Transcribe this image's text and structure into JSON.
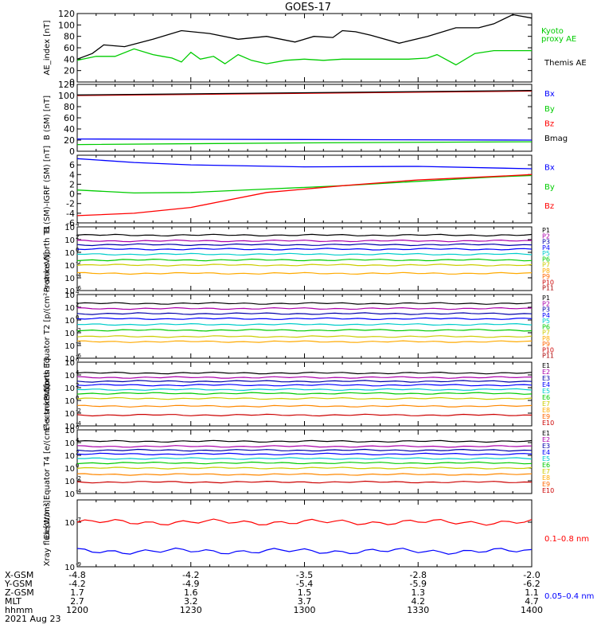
{
  "title": "GOES-17",
  "date_label": "2021 Aug 23",
  "colors": {
    "black": "#000000",
    "blue": "#0000ff",
    "green": "#00cc00",
    "red": "#ff0000",
    "navy": "#0000aa",
    "cyan": "#00cccc"
  },
  "chart_data": [
    {
      "type": "line",
      "ylabel": "AE_index [nT]",
      "ylim": [
        0,
        120
      ],
      "yticks": [
        "0",
        "20",
        "40",
        "60",
        "80",
        "100",
        "120"
      ],
      "legend": [
        "Kyoto proxy AE",
        "Themis AE"
      ],
      "series": [
        {
          "name": "Themis AE",
          "color": "#000000",
          "x": [
            0,
            8,
            14,
            25,
            40,
            55,
            70,
            85,
            100,
            115,
            125,
            135,
            140,
            147,
            155,
            170,
            185,
            200,
            212,
            220,
            230,
            240
          ],
          "y": [
            40,
            50,
            65,
            62,
            75,
            90,
            85,
            75,
            80,
            70,
            80,
            78,
            90,
            88,
            82,
            68,
            80,
            95,
            95,
            102,
            118,
            112
          ]
        },
        {
          "name": "Kyoto proxy AE",
          "color": "#00cc00",
          "x": [
            0,
            10,
            20,
            30,
            40,
            45,
            50,
            55,
            60,
            65,
            72,
            78,
            85,
            92,
            100,
            110,
            120,
            130,
            140,
            150,
            160,
            170,
            175,
            185,
            190,
            200,
            210,
            220,
            240
          ],
          "y": [
            38,
            45,
            45,
            58,
            48,
            45,
            42,
            35,
            52,
            40,
            45,
            32,
            48,
            38,
            32,
            38,
            40,
            38,
            40,
            40,
            40,
            40,
            40,
            42,
            48,
            30,
            50,
            55,
            55
          ]
        }
      ]
    },
    {
      "type": "line",
      "ylabel": "B (SM) [nT]",
      "ylim": [
        0,
        120
      ],
      "yticks": [
        "0",
        "20",
        "40",
        "60",
        "80",
        "100",
        "120"
      ],
      "legend": [
        "Bx",
        "By",
        "Bz",
        "Bmag"
      ],
      "series": [
        {
          "name": "Bx",
          "color": "#0000ff",
          "x": [
            0,
            240
          ],
          "y": [
            22,
            20
          ]
        },
        {
          "name": "By",
          "color": "#00cc00",
          "x": [
            0,
            120,
            240
          ],
          "y": [
            12,
            15,
            17
          ]
        },
        {
          "name": "Bz",
          "color": "#ff0000",
          "x": [
            0,
            120,
            240
          ],
          "y": [
            100,
            104,
            108
          ]
        },
        {
          "name": "Bmag",
          "color": "#000000",
          "x": [
            0,
            120,
            240
          ],
          "y": [
            101,
            105,
            109
          ]
        }
      ]
    },
    {
      "type": "line",
      "ylabel": "B (SM)-IGRF (SM) [nT]",
      "ylim": [
        -6,
        8
      ],
      "yticks": [
        "-6",
        "-4",
        "-2",
        "0",
        "2",
        "4",
        "6"
      ],
      "legend": [
        "Bx",
        "By",
        "Bz"
      ],
      "series": [
        {
          "name": "Bx",
          "color": "#0000ff",
          "x": [
            0,
            30,
            60,
            120,
            180,
            240
          ],
          "y": [
            7.3,
            6.5,
            6.0,
            5.6,
            5.7,
            5.2
          ]
        },
        {
          "name": "By",
          "color": "#00cc00",
          "x": [
            0,
            30,
            60,
            100,
            140,
            180,
            220,
            240
          ],
          "y": [
            0.8,
            0.2,
            0.3,
            1.0,
            1.7,
            2.6,
            3.5,
            3.8
          ]
        },
        {
          "name": "Bz",
          "color": "#ff0000",
          "x": [
            0,
            30,
            60,
            100,
            140,
            180,
            220,
            240
          ],
          "y": [
            -4.5,
            -4.0,
            -2.8,
            0.3,
            1.7,
            2.9,
            3.6,
            4.0
          ]
        }
      ]
    },
    {
      "type": "line",
      "ylabel": "Protons North T1",
      "ylog": true,
      "ylim_exp": [
        -6,
        4
      ],
      "yticks": [
        "10⁶",
        "10⁻⁴",
        "10⁻²",
        "10⁰",
        "10²",
        "10⁴"
      ],
      "legend": [
        "P1",
        "P2",
        "P3",
        "P4",
        "P5",
        "P6",
        "P7",
        "P8",
        "P9",
        "P10",
        "P11"
      ],
      "series_log": [
        {
          "name": "P1",
          "color": "#000000",
          "y": 2.7
        },
        {
          "name": "P2",
          "color": "#aa00aa",
          "y": 1.8
        },
        {
          "name": "P3",
          "color": "#0000aa",
          "y": 1.2
        },
        {
          "name": "P4",
          "color": "#0000ff",
          "y": 0.5
        },
        {
          "name": "P5",
          "color": "#00cccc",
          "y": -0.3
        },
        {
          "name": "P6",
          "color": "#00cc00",
          "y": -1.2
        },
        {
          "name": "P7",
          "color": "#cccc00",
          "y": -2.0
        },
        {
          "name": "P8",
          "color": "#ffaa00",
          "y": -3.3
        }
      ]
    },
    {
      "type": "line",
      "ylabel": "Protons Equator T2 [p/(cm²-s-sr-keV)]",
      "ylog": true,
      "ylim_exp": [
        -6,
        4
      ],
      "legend": [
        "P1",
        "P2",
        "P3",
        "P4",
        "P5",
        "P6",
        "P7",
        "P8",
        "P9",
        "P10",
        "P11"
      ],
      "series_log": [
        {
          "name": "P1",
          "color": "#000000",
          "y": 2.6
        },
        {
          "name": "P2",
          "color": "#aa00aa",
          "y": 1.8
        },
        {
          "name": "P3",
          "color": "#0000aa",
          "y": 1.0
        },
        {
          "name": "P4",
          "color": "#0000ff",
          "y": 0.2
        },
        {
          "name": "P5",
          "color": "#00cccc",
          "y": -0.7
        },
        {
          "name": "P6",
          "color": "#00cc00",
          "y": -1.6
        },
        {
          "name": "P7",
          "color": "#cccc00",
          "y": -2.6
        },
        {
          "name": "P8",
          "color": "#ffaa00",
          "y": -3.4
        }
      ]
    },
    {
      "type": "line",
      "ylabel": "Electrons North T3",
      "ylog": true,
      "ylim_exp": [
        -4,
        6
      ],
      "legend": [
        "E1",
        "E2",
        "E3",
        "E4",
        "E5",
        "E6",
        "E7",
        "E8",
        "E9",
        "E10"
      ],
      "series_log": [
        {
          "name": "E1",
          "color": "#000000",
          "y": 4.3
        },
        {
          "name": "E2",
          "color": "#aa00aa",
          "y": 3.6
        },
        {
          "name": "E3",
          "color": "#0000aa",
          "y": 3.0
        },
        {
          "name": "E4",
          "color": "#0000ff",
          "y": 2.4
        },
        {
          "name": "E5",
          "color": "#00cccc",
          "y": 1.7
        },
        {
          "name": "E6",
          "color": "#00cc00",
          "y": 1.1
        },
        {
          "name": "E7",
          "color": "#cccc00",
          "y": 0.3
        },
        {
          "name": "E8",
          "color": "#ff8800",
          "y": -0.9
        },
        {
          "name": "E9",
          "color": "#cc0000",
          "y": -2.3
        }
      ]
    },
    {
      "type": "line",
      "ylabel": "Electrons Equator T4 [e/(cm²-s-sr-keV)]",
      "ylog": true,
      "ylim_exp": [
        -4,
        6
      ],
      "legend": [
        "E1",
        "E2",
        "E3",
        "E4",
        "E5",
        "E6",
        "E7",
        "E8",
        "E9",
        "E10"
      ],
      "series_log": [
        {
          "name": "E1",
          "color": "#000000",
          "y": 4.2
        },
        {
          "name": "E2",
          "color": "#aa00aa",
          "y": 3.4
        },
        {
          "name": "E3",
          "color": "#0000aa",
          "y": 2.8
        },
        {
          "name": "E4",
          "color": "#0000ff",
          "y": 2.2
        },
        {
          "name": "E5",
          "color": "#00cccc",
          "y": 1.5
        },
        {
          "name": "E6",
          "color": "#00cc00",
          "y": 0.8
        },
        {
          "name": "E7",
          "color": "#cccc00",
          "y": 0.0
        },
        {
          "name": "E8",
          "color": "#ff8800",
          "y": -1.0
        },
        {
          "name": "E9",
          "color": "#cc0000",
          "y": -2.2
        }
      ]
    },
    {
      "type": "line",
      "ylabel": "Xray flux [W/m²]",
      "ylog": true,
      "ylim_exp": [
        -9,
        -6
      ],
      "legend": [
        "0.1–0.8 nm",
        "0.05–0.4 nm"
      ],
      "series_log": [
        {
          "name": "0.1–0.8 nm",
          "color": "#ff0000",
          "y": -7.0
        },
        {
          "name": "0.05–0.4 nm",
          "color": "#0000ff",
          "y": -8.3
        }
      ]
    }
  ],
  "orbit": {
    "row_labels": [
      "X-GSM",
      "Y-GSM",
      "Z-GSM",
      "MLT",
      "hhmm"
    ],
    "columns": [
      {
        "x_gsm": "-4.8",
        "y_gsm": "-4.2",
        "z_gsm": "1.7",
        "mlt": "2.7",
        "hhmm": "1200"
      },
      {
        "x_gsm": "-4.2",
        "y_gsm": "-4.9",
        "z_gsm": "1.6",
        "mlt": "3.2",
        "hhmm": "1230"
      },
      {
        "x_gsm": "-3.5",
        "y_gsm": "-5.4",
        "z_gsm": "1.5",
        "mlt": "3.7",
        "hhmm": "1300"
      },
      {
        "x_gsm": "-2.8",
        "y_gsm": "-5.9",
        "z_gsm": "1.3",
        "mlt": "4.2",
        "hhmm": "1330"
      },
      {
        "x_gsm": "-2.0",
        "y_gsm": "-6.2",
        "z_gsm": "1.1",
        "mlt": "4.7",
        "hhmm": "1400"
      }
    ]
  }
}
